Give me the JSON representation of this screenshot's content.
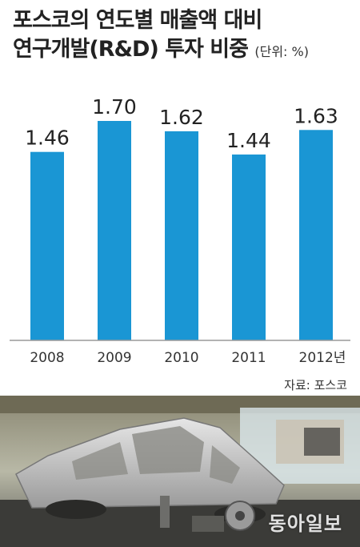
{
  "title": {
    "line1": "포스코의 연도별 매출액 대비",
    "line2": "연구개발(R&D) 투자 비중",
    "unit": "(단위: %)"
  },
  "source": "자료: 포스코",
  "photo_watermark": "동아일보",
  "colors": {
    "bar": "#1a96d4",
    "axis": "#9a9a9a",
    "text": "#222222"
  },
  "chart_data": {
    "type": "bar",
    "categories": [
      "2008",
      "2009",
      "2010",
      "2011",
      "2012년"
    ],
    "values": [
      1.46,
      1.7,
      1.62,
      1.44,
      1.63
    ],
    "value_labels": [
      "1.46",
      "1.70",
      "1.62",
      "1.44",
      "1.63"
    ],
    "title": "포스코의 연도별 매출액 대비 연구개발(R&D) 투자 비중",
    "xlabel": "",
    "ylabel": "",
    "ylim": [
      0,
      1.7
    ],
    "grid": false
  }
}
